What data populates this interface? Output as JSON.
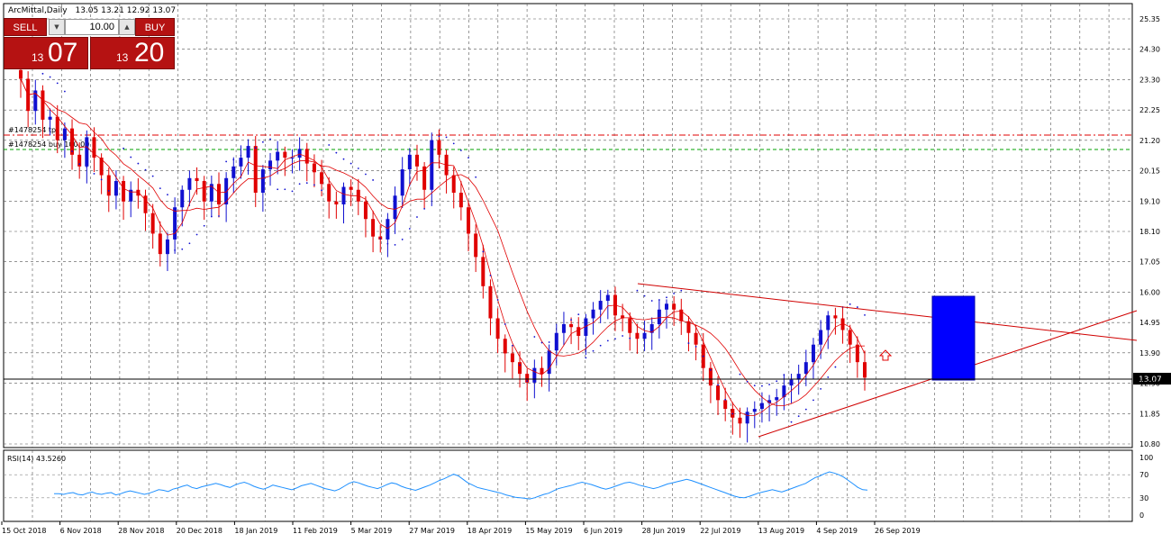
{
  "header": {
    "symbol_label": "ArcMittal,Daily",
    "ohlc": "13.05 13.21 12.92 13.07"
  },
  "trade_panel": {
    "sell_label": "SELL",
    "buy_label": "BUY",
    "lot": "10.00",
    "sell_small": "13",
    "sell_big": "07",
    "buy_small": "13",
    "buy_big": "20"
  },
  "main_price_axis": {
    "labels": [
      "25.35",
      "24.30",
      "23.30",
      "22.25",
      "21.20",
      "20.15",
      "19.10",
      "18.10",
      "17.05",
      "16.00",
      "14.95",
      "13.90",
      "12.90",
      "11.85",
      "10.80"
    ],
    "current_price": "13.07"
  },
  "rsi": {
    "label": "RSI(14) 43.5260",
    "axis_labels": [
      "100",
      "70",
      "30",
      "0"
    ],
    "values": [
      37,
      37,
      36,
      38,
      39,
      36,
      35,
      38,
      40,
      37,
      36,
      38,
      39,
      35,
      37,
      40,
      42,
      40,
      38,
      36,
      38,
      41,
      44,
      43,
      41,
      45,
      47,
      50,
      52,
      48,
      46,
      49,
      51,
      53,
      55,
      53,
      50,
      48,
      52,
      55,
      57,
      54,
      50,
      47,
      45,
      48,
      52,
      50,
      48,
      46,
      44,
      47,
      51,
      53,
      55,
      52,
      49,
      46,
      44,
      42,
      45,
      50,
      55,
      58,
      56,
      53,
      50,
      48,
      46,
      49,
      53,
      56,
      54,
      50,
      47,
      45,
      43,
      46,
      49,
      52,
      56,
      60,
      63,
      67,
      71,
      68,
      62,
      56,
      52,
      48,
      46,
      44,
      42,
      40,
      38,
      35,
      33,
      31,
      30,
      29,
      28,
      30,
      33,
      36,
      38,
      42,
      46,
      48,
      50,
      52,
      55,
      57,
      55,
      53,
      50,
      47,
      45,
      47,
      50,
      53,
      56,
      57,
      55,
      52,
      50,
      48,
      46,
      48,
      51,
      54,
      56,
      58,
      60,
      62,
      60,
      57,
      54,
      51,
      48,
      45,
      42,
      39,
      36,
      33,
      31,
      30,
      32,
      35,
      38,
      40,
      42,
      44,
      42,
      40,
      43,
      46,
      49,
      52,
      55,
      60,
      65,
      68,
      72,
      75,
      73,
      70,
      66,
      60,
      54,
      48,
      44,
      43.5
    ]
  },
  "trade_lines": {
    "tp_label": "#1478254 tp",
    "buy_label": "#1478254 buy 100.00"
  },
  "time_axis": {
    "labels": [
      "15 Oct 2018",
      "6 Nov 2018",
      "28 Nov 2018",
      "20 Dec 2018",
      "18 Jan 2019",
      "11 Feb 2019",
      "5 Mar 2019",
      "27 Mar 2019",
      "18 Apr 2019",
      "15 May 2019",
      "6 Jun 2019",
      "28 Jun 2019",
      "22 Jul 2019",
      "13 Aug 2019",
      "4 Sep 2019",
      "26 Sep 2019"
    ]
  },
  "chart_data": {
    "type": "candlestick",
    "symbol": "ArcMittal",
    "timeframe": "Daily",
    "last_ohlc": {
      "open": 13.05,
      "high": 13.21,
      "low": 12.92,
      "close": 13.07
    },
    "x_dates": [
      "15 Oct 2018",
      "6 Nov 2018",
      "28 Nov 2018",
      "20 Dec 2018",
      "18 Jan 2019",
      "11 Feb 2019",
      "5 Mar 2019",
      "27 Mar 2019",
      "18 Apr 2019",
      "15 May 2019",
      "6 Jun 2019",
      "28 Jun 2019",
      "22 Jul 2019",
      "13 Aug 2019",
      "4 Sep 2019",
      "26 Sep 2019"
    ],
    "close_path": [
      23.3,
      22.2,
      22.9,
      21.9,
      22.0,
      21.2,
      21.6,
      20.7,
      20.3,
      21.3,
      20.6,
      20.0,
      19.3,
      19.8,
      19.1,
      19.5,
      19.3,
      18.7,
      18.0,
      17.3,
      17.8,
      18.9,
      19.5,
      19.9,
      19.8,
      19.1,
      19.7,
      19.0,
      19.9,
      20.3,
      20.6,
      21.0,
      19.4,
      20.2,
      20.5,
      20.8,
      20.6,
      20.6,
      20.9,
      20.4,
      20.1,
      19.7,
      19.1,
      19.0,
      19.6,
      19.5,
      19.1,
      18.5,
      17.9,
      17.8,
      18.5,
      19.3,
      20.2,
      20.7,
      20.3,
      19.5,
      21.2,
      20.7,
      20.0,
      19.4,
      18.9,
      18.0,
      17.2,
      16.2,
      15.1,
      14.4,
      13.9,
      13.6,
      13.2,
      12.9,
      13.4,
      13.2,
      14.0,
      14.6,
      14.9,
      14.8,
      14.5,
      15.1,
      15.4,
      15.7,
      15.9,
      15.2,
      15.1,
      14.6,
      14.4,
      14.6,
      14.9,
      15.4,
      15.6,
      15.4,
      15.0,
      14.6,
      14.2,
      13.4,
      12.8,
      12.3,
      12.0,
      11.7,
      11.5,
      11.9,
      12.0,
      12.2,
      12.3,
      12.4,
      12.8,
      13.0,
      13.2,
      13.6,
      14.2,
      14.7,
      15.2,
      15.1,
      14.7,
      14.2,
      13.6,
      13.07
    ],
    "open_position": {
      "tp": 21.18,
      "entry": 20.9
    },
    "trendline_upper": {
      "from": [
        "28 Jun 2019",
        16.2
      ],
      "to_price": 14.2
    },
    "trendline_lower": {
      "from": [
        "13 Aug 2019",
        11.1
      ],
      "to_price": 15.5
    },
    "ylim": [
      10.8,
      25.35
    ],
    "grid": true,
    "rsi": {
      "period": 14,
      "last": 43.526,
      "levels": [
        70,
        30
      ],
      "ylim": [
        0,
        100
      ]
    }
  }
}
